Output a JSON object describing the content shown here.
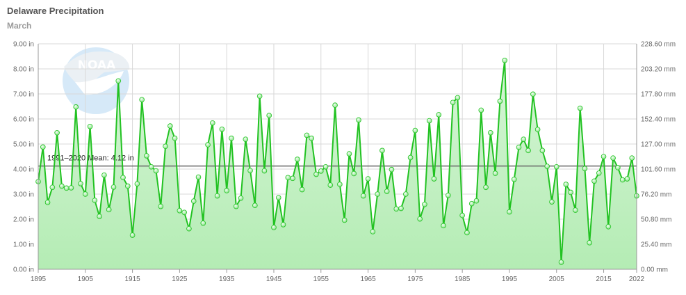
{
  "header": {
    "title": "Delaware Precipitation",
    "subtitle": "March"
  },
  "logo": {
    "text": "NOAA",
    "name": "noaa-logo"
  },
  "colors": {
    "line": "#22c222",
    "fill_top": "#d6f5d6",
    "fill_bottom": "#b4ecb4",
    "marker": "#7fe07f",
    "mean": "#666666",
    "grid": "#d8d8d8"
  },
  "chart_data": {
    "type": "line",
    "title": "Delaware Precipitation",
    "subtitle": "March",
    "x_ticks": [
      "1895",
      "1905",
      "1915",
      "1925",
      "1935",
      "1945",
      "1955",
      "1965",
      "1975",
      "1985",
      "1995",
      "2005",
      "2015",
      "2022"
    ],
    "y_ticks_left": [
      "0.00 in",
      "1.00 in",
      "2.00 in",
      "3.00 in",
      "4.00 in",
      "5.00 in",
      "6.00 in",
      "7.00 in",
      "8.00 in",
      "9.00 in"
    ],
    "y_ticks_right": [
      "0.00 mm",
      "25.40 mm",
      "50.80 mm",
      "76.20 mm",
      "101.60 mm",
      "127.00 mm",
      "152.40 mm",
      "177.80 mm",
      "203.20 mm",
      "228.60 mm"
    ],
    "ylim": [
      0,
      9
    ],
    "xlim": [
      1895,
      2022
    ],
    "grid": true,
    "mean": {
      "label": "1991–2020 Mean: 4.12 in",
      "value": 4.12
    },
    "series": [
      {
        "x": [
          1895,
          1896,
          1897,
          1898,
          1899,
          1900,
          1901,
          1902,
          1903,
          1904,
          1905,
          1906,
          1907,
          1908,
          1909,
          1910,
          1911,
          1912,
          1913,
          1914,
          1915,
          1916,
          1917,
          1918,
          1919,
          1920,
          1921,
          1922,
          1923,
          1924,
          1925,
          1926,
          1927,
          1928,
          1929,
          1930,
          1931,
          1932,
          1933,
          1934,
          1935,
          1936,
          1937,
          1938,
          1939,
          1940,
          1941,
          1942,
          1943,
          1944,
          1945,
          1946,
          1947,
          1948,
          1949,
          1950,
          1951,
          1952,
          1953,
          1954,
          1955,
          1956,
          1957,
          1958,
          1959,
          1960,
          1961,
          1962,
          1963,
          1964,
          1965,
          1966,
          1967,
          1968,
          1969,
          1970,
          1971,
          1972,
          1973,
          1974,
          1975,
          1976,
          1977,
          1978,
          1979,
          1980,
          1981,
          1982,
          1983,
          1984,
          1985,
          1986,
          1987,
          1988,
          1989,
          1990,
          1991,
          1992,
          1993,
          1994,
          1995,
          1996,
          1997,
          1998,
          1999,
          2000,
          2001,
          2002,
          2003,
          2004,
          2005,
          2006,
          2007,
          2008,
          2009,
          2010,
          2011,
          2012,
          2013,
          2014,
          2015,
          2016,
          2017,
          2018,
          2019,
          2020,
          2021,
          2022
        ],
        "values": [
          3.5,
          4.88,
          2.67,
          3.27,
          5.45,
          3.32,
          3.24,
          3.25,
          6.48,
          3.42,
          3.0,
          5.7,
          2.75,
          2.11,
          3.76,
          2.38,
          3.28,
          7.52,
          3.66,
          3.32,
          1.36,
          3.41,
          6.77,
          4.53,
          4.09,
          3.93,
          2.51,
          4.91,
          5.72,
          5.23,
          2.34,
          2.27,
          1.62,
          2.72,
          3.68,
          1.84,
          4.97,
          5.84,
          2.93,
          5.59,
          3.14,
          5.23,
          2.51,
          2.84,
          5.19,
          3.94,
          2.55,
          6.91,
          3.93,
          6.14,
          1.67,
          2.86,
          1.78,
          3.66,
          3.63,
          4.39,
          3.18,
          5.35,
          5.23,
          3.79,
          3.92,
          4.09,
          3.36,
          6.55,
          3.39,
          1.96,
          4.61,
          3.82,
          5.96,
          2.93,
          3.61,
          1.5,
          3.0,
          4.74,
          3.11,
          3.98,
          2.41,
          2.43,
          3.0,
          4.46,
          5.54,
          2.01,
          2.59,
          5.93,
          3.61,
          6.17,
          1.74,
          2.95,
          6.66,
          6.85,
          2.15,
          1.46,
          2.62,
          2.73,
          6.35,
          3.27,
          5.45,
          3.83,
          6.71,
          8.34,
          2.29,
          3.59,
          4.87,
          5.19,
          4.74,
          6.99,
          5.58,
          4.74,
          4.11,
          2.69,
          4.09,
          0.28,
          3.39,
          3.07,
          2.36,
          6.43,
          4.02,
          1.06,
          3.52,
          3.84,
          4.5,
          1.7,
          4.44,
          4.06,
          3.57,
          3.61,
          4.44,
          2.93
        ]
      }
    ]
  }
}
